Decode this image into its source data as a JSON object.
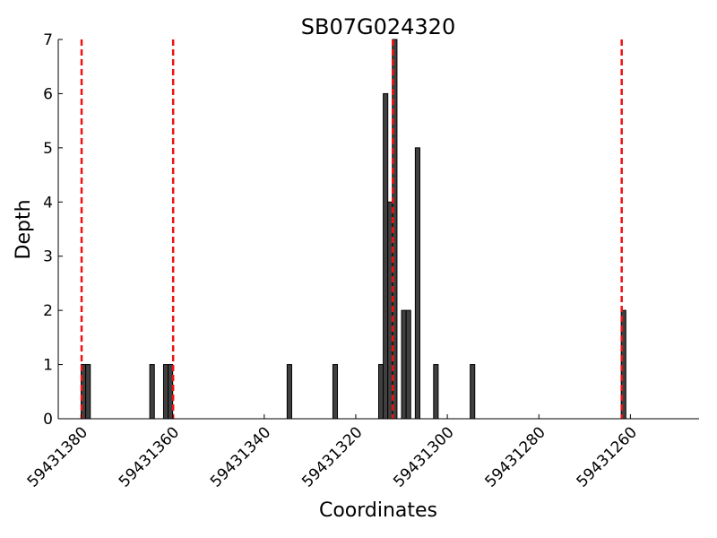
{
  "chart_data": {
    "type": "bar",
    "title": "SB07G024320",
    "xlabel": "Coordinates",
    "ylabel": "Depth",
    "x_reversed": true,
    "xlim": [
      59431385,
      59431245
    ],
    "ylim": [
      0,
      7
    ],
    "xticks": [
      59431380,
      59431360,
      59431340,
      59431320,
      59431300,
      59431280,
      59431260
    ],
    "yticks": [
      0,
      1,
      2,
      3,
      4,
      5,
      6,
      7
    ],
    "bar_width": 1,
    "bar_color": "#404040",
    "bars": [
      {
        "x": 59431380,
        "depth": 1
      },
      {
        "x": 59431379,
        "depth": 1
      },
      {
        "x": 59431365,
        "depth": 1
      },
      {
        "x": 59431362,
        "depth": 1
      },
      {
        "x": 59431361,
        "depth": 1
      },
      {
        "x": 59431335,
        "depth": 1
      },
      {
        "x": 59431325,
        "depth": 1
      },
      {
        "x": 59431315,
        "depth": 1
      },
      {
        "x": 59431314,
        "depth": 6
      },
      {
        "x": 59431313,
        "depth": 4
      },
      {
        "x": 59431312,
        "depth": 7
      },
      {
        "x": 59431310,
        "depth": 2
      },
      {
        "x": 59431309,
        "depth": 2
      },
      {
        "x": 59431307,
        "depth": 5
      },
      {
        "x": 59431303,
        "depth": 1
      },
      {
        "x": 59431295,
        "depth": 1
      },
      {
        "x": 59431262,
        "depth": 2
      }
    ],
    "reference_lines": {
      "style": "dashed",
      "color": "#ee1111",
      "x": [
        59431380,
        59431360,
        59431312,
        59431262
      ]
    },
    "grid": false,
    "legend": "none"
  }
}
